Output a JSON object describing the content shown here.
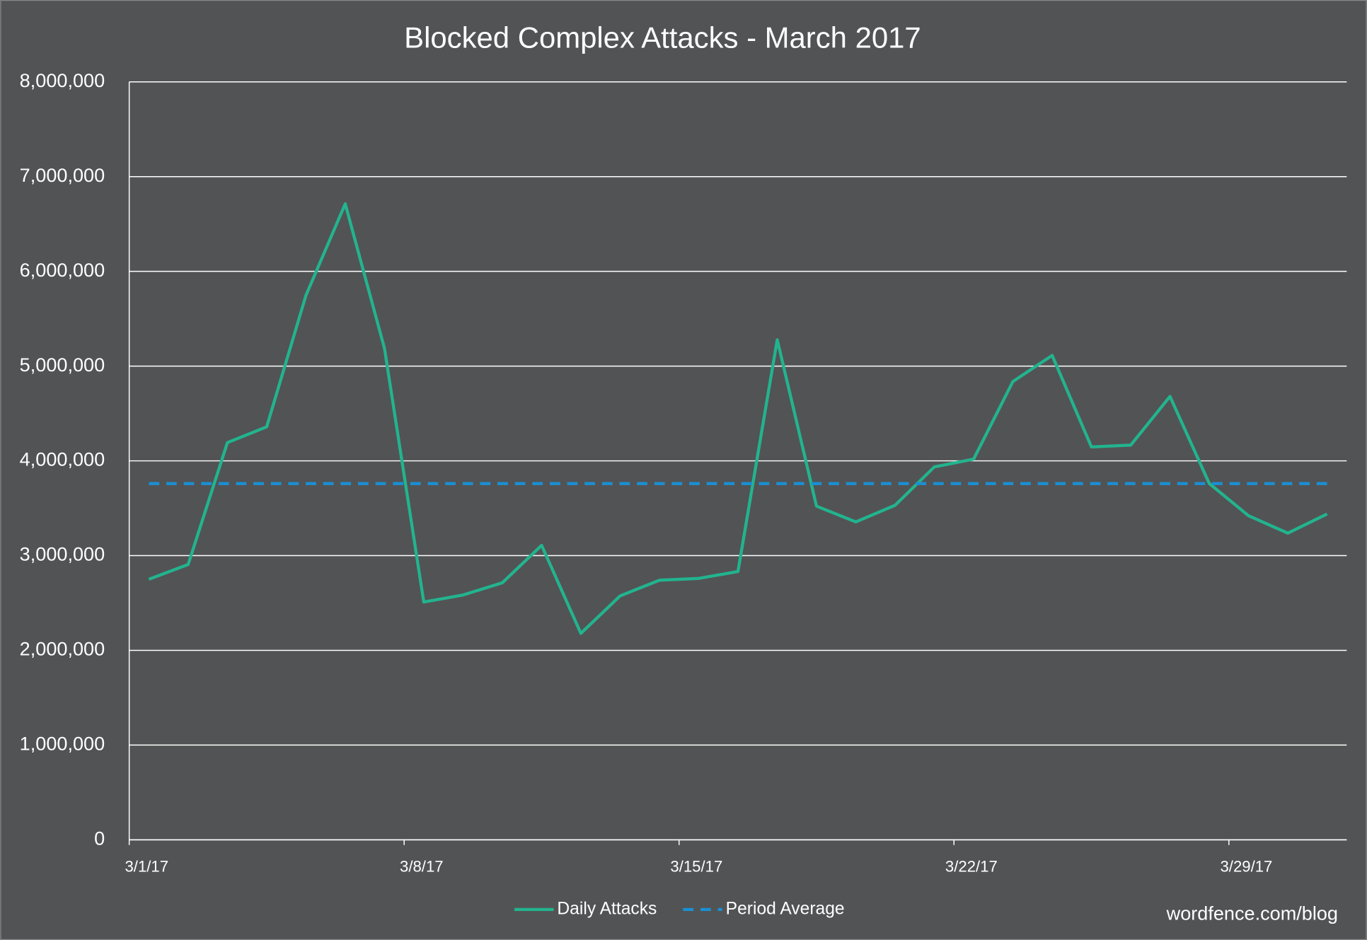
{
  "chart_data": {
    "type": "line",
    "title": "Blocked Complex Attacks - March 2017",
    "categories": [
      "3/1/17",
      null,
      null,
      null,
      null,
      null,
      null,
      "3/8/17",
      null,
      null,
      null,
      null,
      null,
      null,
      "3/15/17",
      null,
      null,
      null,
      null,
      null,
      null,
      "3/22/17",
      null,
      null,
      null,
      null,
      null,
      null,
      "3/29/17",
      null,
      null
    ],
    "series": [
      {
        "name": "Daily Attacks",
        "color": "#22b48e",
        "dash": false,
        "values": [
          2750000,
          2906000,
          4193000,
          4359000,
          5747000,
          6713000,
          5186000,
          2510000,
          2584000,
          2713000,
          3108000,
          2179000,
          2575000,
          2740000,
          2759000,
          2832000,
          5278000,
          3522000,
          3356000,
          3531000,
          3936000,
          4018000,
          4837000,
          5113000,
          4147000,
          4166000,
          4680000,
          3761000,
          3421000,
          3237000,
          3439000
        ]
      },
      {
        "name": "Period Average",
        "color": "#1b8fd2",
        "dash": true,
        "values": [
          3760000,
          3760000,
          3760000,
          3760000,
          3760000,
          3760000,
          3760000,
          3760000,
          3760000,
          3760000,
          3760000,
          3760000,
          3760000,
          3760000,
          3760000,
          3760000,
          3760000,
          3760000,
          3760000,
          3760000,
          3760000,
          3760000,
          3760000,
          3760000,
          3760000,
          3760000,
          3760000,
          3760000,
          3760000,
          3760000,
          3760000
        ]
      }
    ],
    "ylim": [
      0,
      8000000
    ],
    "yticks": [
      0,
      {
        "value": 1000000,
        "label": "1,000,000"
      },
      {
        "value": 2000000,
        "label": "2,000,000"
      },
      {
        "value": 3000000,
        "label": "3,000,000"
      },
      {
        "value": 4000000,
        "label": "4,000,000"
      },
      {
        "value": 5000000,
        "label": "5,000,000"
      },
      {
        "value": 6000000,
        "label": "6,000,000"
      },
      {
        "value": 7000000,
        "label": "7,000,000"
      },
      {
        "value": 8000000,
        "label": "8,000,000"
      }
    ],
    "grid": true,
    "legend": "bottom",
    "watermark": "wordfence.com/blog"
  }
}
